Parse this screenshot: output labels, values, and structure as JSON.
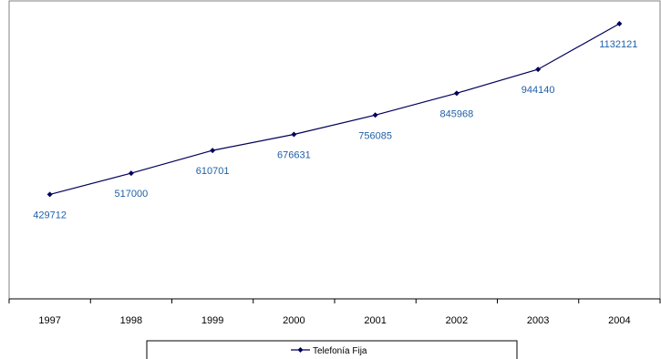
{
  "chart_data": {
    "type": "line",
    "categories": [
      "1997",
      "1998",
      "1999",
      "2000",
      "2001",
      "2002",
      "2003",
      "2004"
    ],
    "series": [
      {
        "name": "Telefonía Fija",
        "values": [
          429712,
          517000,
          610701,
          676631,
          756085,
          845968,
          944140,
          1132121
        ],
        "labels": [
          "429712",
          "517000",
          "610701",
          "676631",
          "756085",
          "845968",
          "944140",
          "1132121"
        ]
      }
    ],
    "ylim": [
      0,
      1200000
    ],
    "grid": false,
    "legend_position": "bottom",
    "colors": {
      "line": "#00005a",
      "marker": "#00005a",
      "label": "#1f5fa8",
      "axis": "#000000",
      "frame": "#808080"
    }
  }
}
